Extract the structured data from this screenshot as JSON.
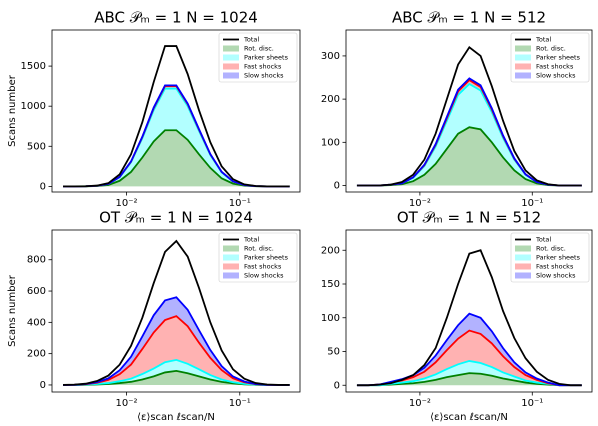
{
  "chart_data": [
    {
      "type": "stacked_area",
      "title": "ABC 𝒫ₘ = 1 N = 1024",
      "ylabel": "Scans number",
      "xscale": "log",
      "alpha": 0.3,
      "legend": "upper right",
      "x": [
        0.002754,
        0.003467,
        0.004365,
        0.005495,
        0.006918,
        0.00871,
        0.01096,
        0.0138,
        0.01738,
        0.02188,
        0.02754,
        0.03467,
        0.04365,
        0.05495,
        0.06918,
        0.0871,
        0.1096,
        0.138,
        0.1738,
        0.2188,
        0.2754
      ],
      "xlim": [
        0.0022,
        0.34
      ],
      "xticks": [
        {
          "value": 0.01,
          "label": "10⁻²"
        },
        {
          "value": 0.1,
          "label": "10⁻¹"
        }
      ],
      "ylim": [
        -70,
        1950
      ],
      "yticks": [
        0,
        500,
        1000,
        1500
      ],
      "series": [
        {
          "name": "Total",
          "style": "line",
          "color": "#000000",
          "values": [
            0,
            0,
            2,
            10,
            40,
            150,
            400,
            800,
            1300,
            1750,
            1750,
            1400,
            950,
            550,
            250,
            90,
            25,
            5,
            0,
            0,
            0
          ]
        },
        {
          "name": "Rot. disc.",
          "style": "area",
          "color": "#008000",
          "values": [
            0,
            0,
            1,
            5,
            18,
            70,
            180,
            360,
            560,
            700,
            700,
            580,
            400,
            230,
            100,
            35,
            10,
            2,
            0,
            0,
            0
          ]
        },
        {
          "name": "Parker sheets",
          "style": "area",
          "color": "#00ffff",
          "values": [
            0,
            0,
            1,
            3,
            12,
            45,
            120,
            240,
            390,
            520,
            520,
            420,
            290,
            160,
            75,
            25,
            7,
            1,
            0,
            0,
            0
          ]
        },
        {
          "name": "Fast shocks",
          "style": "area",
          "color": "#ff0000",
          "values": [
            0,
            0,
            0,
            0,
            1,
            3,
            8,
            15,
            25,
            30,
            30,
            25,
            18,
            10,
            5,
            2,
            0,
            0,
            0,
            0,
            0
          ]
        },
        {
          "name": "Slow shocks",
          "style": "area",
          "color": "#0000ff",
          "values": [
            0,
            0,
            0,
            0,
            0,
            1,
            3,
            5,
            8,
            10,
            10,
            8,
            6,
            3,
            1,
            1,
            0,
            0,
            0,
            0,
            0
          ]
        }
      ]
    },
    {
      "type": "stacked_area",
      "title": "ABC 𝒫ₘ = 1 N = 512",
      "xscale": "log",
      "alpha": 0.3,
      "legend": "upper right",
      "x": [
        0.002754,
        0.003467,
        0.004365,
        0.005495,
        0.006918,
        0.00871,
        0.01096,
        0.0138,
        0.01738,
        0.02188,
        0.02754,
        0.03467,
        0.04365,
        0.05495,
        0.06918,
        0.0871,
        0.1096,
        0.138,
        0.1738,
        0.2188,
        0.2754
      ],
      "xlim": [
        0.0022,
        0.34
      ],
      "xticks": [
        {
          "value": 0.01,
          "label": "10⁻²"
        },
        {
          "value": 0.1,
          "label": "10⁻¹"
        }
      ],
      "ylim": [
        -15,
        360
      ],
      "yticks": [
        0,
        100,
        200,
        300
      ],
      "series": [
        {
          "name": "Total",
          "style": "line",
          "color": "#000000",
          "values": [
            0,
            0,
            0,
            2,
            8,
            25,
            60,
            120,
            200,
            280,
            320,
            300,
            230,
            150,
            80,
            35,
            12,
            3,
            0,
            0,
            0
          ]
        },
        {
          "name": "Rot. disc.",
          "style": "area",
          "color": "#008000",
          "values": [
            0,
            0,
            0,
            1,
            3,
            10,
            25,
            50,
            85,
            120,
            135,
            130,
            100,
            65,
            35,
            15,
            5,
            1,
            0,
            0,
            0
          ]
        },
        {
          "name": "Parker sheets",
          "style": "area",
          "color": "#00ffff",
          "values": [
            0,
            0,
            0,
            1,
            2,
            8,
            20,
            40,
            65,
            90,
            100,
            90,
            70,
            45,
            25,
            10,
            3,
            1,
            0,
            0,
            0
          ]
        },
        {
          "name": "Fast shocks",
          "style": "area",
          "color": "#ff0000",
          "values": [
            0,
            0,
            0,
            0,
            0,
            1,
            2,
            4,
            6,
            8,
            9,
            8,
            6,
            4,
            2,
            1,
            0,
            0,
            0,
            0,
            0
          ]
        },
        {
          "name": "Slow shocks",
          "style": "area",
          "color": "#0000ff",
          "values": [
            0,
            0,
            0,
            0,
            0,
            0,
            1,
            2,
            3,
            4,
            4,
            4,
            3,
            2,
            1,
            0,
            0,
            0,
            0,
            0,
            0
          ]
        }
      ]
    },
    {
      "type": "stacked_area",
      "title": "OT 𝒫ₘ = 1 N = 1024",
      "ylabel": "Scans number",
      "xlabel": "⟨ε⟩scan ℓscan/N",
      "xscale": "log",
      "alpha": 0.3,
      "legend": "upper right",
      "x": [
        0.002754,
        0.003467,
        0.004365,
        0.005495,
        0.006918,
        0.00871,
        0.01096,
        0.0138,
        0.01738,
        0.02188,
        0.02754,
        0.03467,
        0.04365,
        0.05495,
        0.06918,
        0.0871,
        0.1096,
        0.138,
        0.1738,
        0.2188,
        0.2754
      ],
      "xlim": [
        0.0022,
        0.34
      ],
      "xticks": [
        {
          "value": 0.01,
          "label": "10⁻²"
        },
        {
          "value": 0.1,
          "label": "10⁻¹"
        }
      ],
      "ylim": [
        -45,
        990
      ],
      "yticks": [
        0,
        200,
        400,
        600,
        800
      ],
      "series": [
        {
          "name": "Total",
          "style": "line",
          "color": "#000000",
          "values": [
            0,
            2,
            8,
            25,
            60,
            130,
            250,
            430,
            650,
            850,
            920,
            820,
            620,
            400,
            220,
            100,
            40,
            12,
            3,
            0,
            0
          ]
        },
        {
          "name": "Rot. disc.",
          "style": "area",
          "color": "#008000",
          "values": [
            0,
            0,
            1,
            3,
            6,
            12,
            20,
            35,
            55,
            80,
            90,
            75,
            55,
            35,
            20,
            10,
            4,
            1,
            0,
            0,
            0
          ]
        },
        {
          "name": "Parker sheets",
          "style": "area",
          "color": "#00ffff",
          "values": [
            0,
            0,
            1,
            3,
            6,
            12,
            20,
            35,
            50,
            65,
            70,
            60,
            45,
            28,
            15,
            7,
            3,
            1,
            0,
            0,
            0
          ]
        },
        {
          "name": "Fast shocks",
          "style": "area",
          "color": "#ff0000",
          "values": [
            0,
            1,
            3,
            8,
            20,
            45,
            90,
            160,
            230,
            270,
            280,
            240,
            170,
            110,
            60,
            25,
            10,
            3,
            1,
            0,
            0
          ]
        },
        {
          "name": "Slow shocks",
          "style": "area",
          "color": "#0000ff",
          "values": [
            0,
            0,
            1,
            4,
            10,
            25,
            50,
            80,
            110,
            125,
            120,
            105,
            80,
            50,
            25,
            12,
            5,
            1,
            0,
            0,
            0
          ]
        }
      ]
    },
    {
      "type": "stacked_area",
      "title": "OT 𝒫ₘ = 1 N = 512",
      "xlabel": "⟨ε⟩scan ℓscan/N",
      "xscale": "log",
      "alpha": 0.3,
      "legend": "upper right",
      "x": [
        0.002754,
        0.003467,
        0.004365,
        0.005495,
        0.006918,
        0.00871,
        0.01096,
        0.0138,
        0.01738,
        0.02188,
        0.02754,
        0.03467,
        0.04365,
        0.05495,
        0.06918,
        0.0871,
        0.1096,
        0.138,
        0.1738,
        0.2188,
        0.2754
      ],
      "xlim": [
        0.0022,
        0.34
      ],
      "xticks": [
        {
          "value": 0.01,
          "label": "10⁻²"
        },
        {
          "value": 0.1,
          "label": "10⁻¹"
        }
      ],
      "ylim": [
        -10,
        230
      ],
      "yticks": [
        0,
        50,
        100,
        150,
        200
      ],
      "series": [
        {
          "name": "Total",
          "style": "line",
          "color": "#000000",
          "values": [
            0,
            0,
            1,
            3,
            8,
            15,
            30,
            55,
            100,
            150,
            195,
            200,
            160,
            110,
            70,
            40,
            20,
            8,
            2,
            0,
            0
          ]
        },
        {
          "name": "Rot. disc.",
          "style": "area",
          "color": "#008000",
          "values": [
            0,
            0,
            0,
            1,
            2,
            3,
            5,
            8,
            12,
            15,
            18,
            17,
            14,
            10,
            7,
            4,
            2,
            1,
            0,
            0,
            0
          ]
        },
        {
          "name": "Parker sheets",
          "style": "area",
          "color": "#00ffff",
          "values": [
            0,
            0,
            0,
            1,
            2,
            3,
            5,
            8,
            12,
            16,
            18,
            16,
            13,
            9,
            6,
            3,
            2,
            1,
            0,
            0,
            0
          ]
        },
        {
          "name": "Fast shocks",
          "style": "area",
          "color": "#ff0000",
          "values": [
            0,
            0,
            1,
            2,
            3,
            6,
            10,
            18,
            28,
            38,
            45,
            43,
            35,
            24,
            14,
            8,
            4,
            1,
            0,
            0,
            0
          ]
        },
        {
          "name": "Slow shocks",
          "style": "area",
          "color": "#0000ff",
          "values": [
            0,
            0,
            0,
            1,
            2,
            3,
            6,
            10,
            15,
            20,
            25,
            24,
            18,
            12,
            7,
            4,
            2,
            1,
            0,
            0,
            0
          ]
        }
      ]
    }
  ]
}
